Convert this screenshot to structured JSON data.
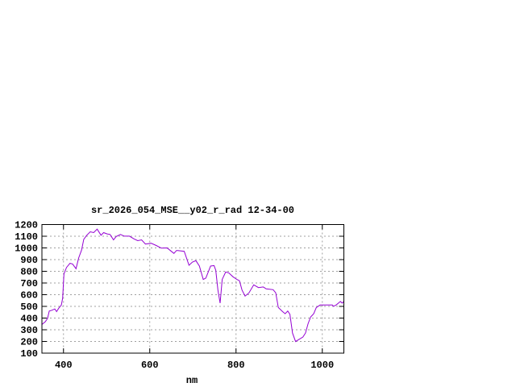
{
  "chart_data": {
    "type": "line",
    "title": "sr_2026_054_MSE__y02_r_rad 12-34-00",
    "xlabel": "nm",
    "ylabel": "",
    "xlim": [
      350,
      1050
    ],
    "ylim": [
      100,
      1200
    ],
    "xticks": [
      400,
      600,
      800,
      1000
    ],
    "yticks": [
      100,
      200,
      300,
      400,
      500,
      600,
      700,
      800,
      900,
      1000,
      1100,
      1200
    ],
    "grid": true,
    "legend": "none",
    "line_color": "#9400d3",
    "series": [
      {
        "x": [
          350,
          358,
          363,
          367,
          373,
          380,
          384,
          389,
          395,
          398,
          401,
          407,
          415,
          421,
          429,
          435,
          442,
          447,
          454,
          462,
          470,
          478,
          487,
          493,
          501,
          508,
          516,
          522,
          532,
          541,
          553,
          563,
          572,
          581,
          590,
          603,
          615,
          627,
          640,
          650,
          656,
          662,
          665,
          680,
          691,
          699,
          707,
          715,
          724,
          730,
          741,
          749,
          753,
          758,
          763,
          768,
          776,
          783,
          793,
          802,
          808,
          814,
          821,
          830,
          841,
          852,
          863,
          870,
          886,
          892,
          898,
          908,
          914,
          920,
          925,
          931,
          938,
          945,
          955,
          961,
          967,
          973,
          980,
          986,
          995,
          1004,
          1014,
          1023,
          1026,
          1032,
          1042,
          1046,
          1050
        ],
        "y": [
          345,
          370,
          398,
          460,
          467,
          478,
          455,
          485,
          512,
          570,
          776,
          833,
          868,
          863,
          822,
          913,
          982,
          1074,
          1108,
          1138,
          1131,
          1161,
          1108,
          1131,
          1120,
          1115,
          1069,
          1097,
          1115,
          1101,
          1101,
          1078,
          1062,
          1069,
          1033,
          1040,
          1021,
          998,
          1000,
          971,
          953,
          978,
          978,
          971,
          852,
          879,
          891,
          845,
          730,
          742,
          845,
          849,
          810,
          639,
          528,
          730,
          794,
          787,
          753,
          730,
          719,
          639,
          588,
          616,
          684,
          661,
          666,
          650,
          643,
          616,
          490,
          455,
          437,
          460,
          432,
          272,
          199,
          215,
          238,
          272,
          352,
          410,
          437,
          490,
          512,
          512,
          512,
          512,
          501,
          512,
          542,
          528,
          542
        ]
      }
    ]
  }
}
